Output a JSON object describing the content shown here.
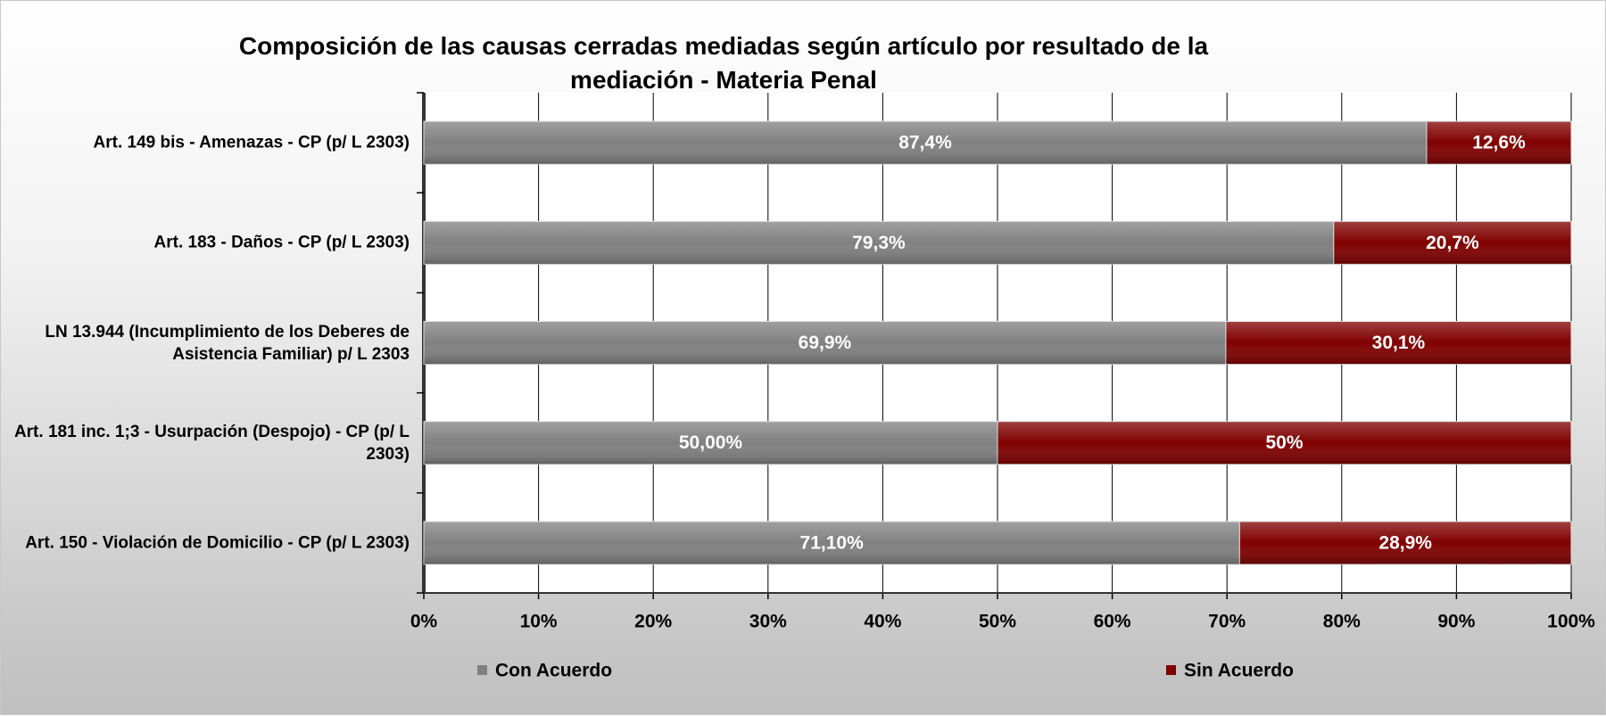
{
  "chart_data": {
    "type": "stacked_bar_horizontal",
    "title": "Composición de las causas cerradas mediadas según artículo por resultado de la mediación - Materia Penal",
    "categories": [
      "Art. 149 bis - Amenazas - CP (p/ L 2303)",
      "Art. 183 - Daños - CP (p/ L 2303)",
      "LN 13.944 (Incumplimiento de los Deberes de Asistencia Familiar) p/ L 2303",
      "Art. 181 inc. 1;3 - Usurpación (Despojo) - CP (p/ L 2303)",
      "Art. 150 - Violación de Domicilio - CP (p/ L 2303)"
    ],
    "series": [
      {
        "name": "Con Acuerdo",
        "color": "#808080",
        "values": [
          87.4,
          79.3,
          69.9,
          50,
          71.1
        ],
        "value_labels": [
          "87,4%",
          "79,3%",
          "69,9%",
          "50,00%",
          "71,10%"
        ]
      },
      {
        "name": "Sin Acuerdo",
        "color": "#800000",
        "values": [
          12.6,
          20.7,
          30.1,
          50,
          28.9
        ],
        "value_labels": [
          "12,6%",
          "20,7%",
          "30,1%",
          "50%",
          "28,9%"
        ]
      }
    ],
    "xlim": [
      0,
      100
    ],
    "xticks": [
      {
        "value": 0,
        "label": "0%"
      },
      {
        "value": 10,
        "label": "10%"
      },
      {
        "value": 20,
        "label": "20%"
      },
      {
        "value": 30,
        "label": "30%"
      },
      {
        "value": 40,
        "label": "40%"
      },
      {
        "value": 50,
        "label": "50%"
      },
      {
        "value": 60,
        "label": "60%"
      },
      {
        "value": 70,
        "label": "70%"
      },
      {
        "value": 80,
        "label": "80%"
      },
      {
        "value": 90,
        "label": "90%"
      },
      {
        "value": 100,
        "label": "100%"
      }
    ],
    "grid": true,
    "legend": "bottom"
  }
}
